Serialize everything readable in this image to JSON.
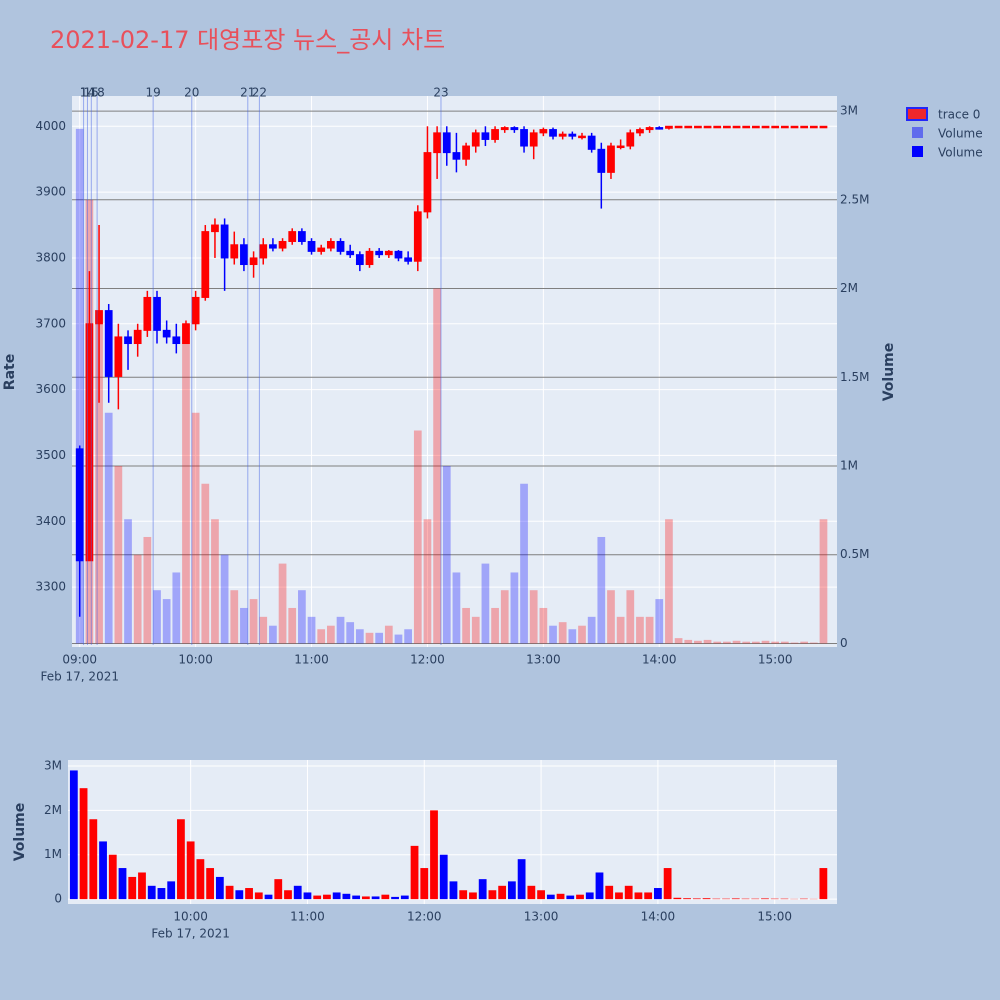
{
  "chart_data": [
    {
      "type": "candlestick",
      "title": "2021-02-17 대영포장 뉴스_공시 차트",
      "name": "trace 0",
      "increasing_color": "#ff0000",
      "decreasing_color": "#0000ff",
      "x": [
        "2021-02-17 09:00",
        "2021-02-17 09:05",
        "2021-02-17 09:10",
        "2021-02-17 09:15",
        "2021-02-17 09:20",
        "2021-02-17 09:25",
        "2021-02-17 09:30",
        "2021-02-17 09:35",
        "2021-02-17 09:40",
        "2021-02-17 09:45",
        "2021-02-17 09:50",
        "2021-02-17 09:55",
        "2021-02-17 10:00",
        "2021-02-17 10:05",
        "2021-02-17 10:10",
        "2021-02-17 10:15",
        "2021-02-17 10:20",
        "2021-02-17 10:25",
        "2021-02-17 10:30",
        "2021-02-17 10:35",
        "2021-02-17 10:40",
        "2021-02-17 10:45",
        "2021-02-17 10:50",
        "2021-02-17 10:55",
        "2021-02-17 11:00",
        "2021-02-17 11:05",
        "2021-02-17 11:10",
        "2021-02-17 11:15",
        "2021-02-17 11:20",
        "2021-02-17 11:25",
        "2021-02-17 11:30",
        "2021-02-17 11:35",
        "2021-02-17 11:40",
        "2021-02-17 11:45",
        "2021-02-17 11:50",
        "2021-02-17 11:55",
        "2021-02-17 12:00",
        "2021-02-17 12:05",
        "2021-02-17 12:10",
        "2021-02-17 12:15",
        "2021-02-17 12:20",
        "2021-02-17 12:25",
        "2021-02-17 12:30",
        "2021-02-17 12:35",
        "2021-02-17 12:40",
        "2021-02-17 12:45",
        "2021-02-17 12:50",
        "2021-02-17 12:55",
        "2021-02-17 13:00",
        "2021-02-17 13:05",
        "2021-02-17 13:10",
        "2021-02-17 13:15",
        "2021-02-17 13:20",
        "2021-02-17 13:25",
        "2021-02-17 13:30",
        "2021-02-17 13:35",
        "2021-02-17 13:40",
        "2021-02-17 13:45",
        "2021-02-17 13:50",
        "2021-02-17 13:55",
        "2021-02-17 14:00",
        "2021-02-17 14:05",
        "2021-02-17 14:10",
        "2021-02-17 14:15",
        "2021-02-17 14:20",
        "2021-02-17 14:25",
        "2021-02-17 14:30",
        "2021-02-17 14:35",
        "2021-02-17 14:40",
        "2021-02-17 14:45",
        "2021-02-17 14:50",
        "2021-02-17 14:55",
        "2021-02-17 15:00",
        "2021-02-17 15:05",
        "2021-02-17 15:10",
        "2021-02-17 15:15",
        "2021-02-17 15:20",
        "2021-02-17 15:25"
      ],
      "open": [
        3510,
        3340,
        3700,
        3720,
        3620,
        3680,
        3670,
        3690,
        3740,
        3690,
        3680,
        3670,
        3700,
        3740,
        3840,
        3850,
        3800,
        3820,
        3790,
        3800,
        3820,
        3815,
        3825,
        3840,
        3825,
        3810,
        3815,
        3825,
        3810,
        3805,
        3790,
        3810,
        3805,
        3810,
        3800,
        3795,
        3870,
        3960,
        3990,
        3960,
        3950,
        3970,
        3990,
        3980,
        3995,
        3998,
        3995,
        3970,
        3990,
        3995,
        3985,
        3988,
        3985,
        3985,
        3965,
        3930,
        3970,
        3970,
        3990,
        3995,
        3998,
        3997,
        4000,
        4000,
        4000,
        4000,
        4000,
        4000,
        4000,
        4000,
        4000,
        4000,
        4000,
        4000,
        4000,
        4000,
        4000,
        4000
      ],
      "high": [
        3515,
        3780,
        3850,
        3730,
        3700,
        3690,
        3700,
        3750,
        3750,
        3705,
        3700,
        3705,
        3750,
        3850,
        3860,
        3860,
        3840,
        3830,
        3810,
        3830,
        3830,
        3830,
        3845,
        3845,
        3830,
        3820,
        3830,
        3830,
        3820,
        3810,
        3815,
        3815,
        3812,
        3812,
        3810,
        3880,
        4000,
        4000,
        4000,
        3990,
        3975,
        3995,
        4000,
        4000,
        4000,
        4000,
        4000,
        3995,
        3998,
        3998,
        3992,
        3992,
        3990,
        3990,
        3975,
        3975,
        3980,
        3995,
        3998,
        4000,
        4000,
        4000,
        4000,
        4000,
        4000,
        4000,
        4000,
        4000,
        4000,
        4000,
        4000,
        4000,
        4000,
        4000,
        4000,
        4000,
        4000,
        4000
      ],
      "low": [
        3255,
        3340,
        3580,
        3580,
        3570,
        3630,
        3650,
        3680,
        3670,
        3670,
        3655,
        3670,
        3690,
        3735,
        3800,
        3750,
        3790,
        3780,
        3770,
        3790,
        3810,
        3810,
        3820,
        3820,
        3805,
        3805,
        3810,
        3805,
        3800,
        3780,
        3785,
        3800,
        3800,
        3795,
        3790,
        3780,
        3860,
        3920,
        3940,
        3930,
        3940,
        3960,
        3970,
        3975,
        3990,
        3990,
        3960,
        3950,
        3985,
        3980,
        3980,
        3980,
        3980,
        3960,
        3875,
        3920,
        3965,
        3965,
        3985,
        3990,
        3995,
        3995,
        4000,
        4000,
        4000,
        4000,
        4000,
        4000,
        4000,
        4000,
        4000,
        4000,
        4000,
        4000,
        4000,
        4000,
        4000,
        4000
      ],
      "close": [
        3340,
        3700,
        3720,
        3620,
        3680,
        3670,
        3690,
        3740,
        3690,
        3680,
        3670,
        3700,
        3740,
        3840,
        3850,
        3800,
        3820,
        3790,
        3800,
        3820,
        3815,
        3825,
        3840,
        3825,
        3810,
        3815,
        3825,
        3810,
        3805,
        3790,
        3810,
        3805,
        3810,
        3800,
        3795,
        3870,
        3960,
        3990,
        3960,
        3950,
        3970,
        3990,
        3980,
        3995,
        3998,
        3995,
        3970,
        3990,
        3995,
        3985,
        3988,
        3985,
        3985,
        3965,
        3930,
        3970,
        3970,
        3990,
        3995,
        3998,
        3997,
        4000,
        4000,
        4000,
        4000,
        4000,
        4000,
        4000,
        4000,
        4000,
        4000,
        4000,
        4000,
        4000,
        4000,
        4000,
        4000,
        4000
      ],
      "volume": {
        "name": "Volume",
        "axis": "y2",
        "values": [
          2900000,
          2500000,
          1800000,
          1300000,
          1000000,
          700000,
          500000,
          600000,
          300000,
          250000,
          400000,
          1800000,
          1300000,
          900000,
          700000,
          500000,
          300000,
          200000,
          250000,
          150000,
          100000,
          450000,
          200000,
          300000,
          150000,
          80000,
          100000,
          150000,
          120000,
          80000,
          60000,
          60000,
          100000,
          50000,
          80000,
          1200000,
          700000,
          2000000,
          1000000,
          400000,
          200000,
          150000,
          450000,
          200000,
          300000,
          400000,
          900000,
          300000,
          200000,
          100000,
          120000,
          80000,
          100000,
          150000,
          600000,
          300000,
          150000,
          300000,
          150000,
          150000,
          250000,
          700000,
          30000,
          20000,
          15000,
          20000,
          10000,
          10000,
          15000,
          10000,
          10000,
          15000,
          10000,
          10000,
          5000,
          10000,
          5000,
          700000
        ]
      },
      "ylabel": "Rate",
      "y2label": "Volume",
      "xlim": [
        "2021-02-17 08:56",
        "2021-02-17 15:32"
      ],
      "xticks": [
        {
          "value": "2021-02-17 09:00",
          "label": "09:00"
        },
        {
          "value": "2021-02-17 10:00",
          "label": "10:00"
        },
        {
          "value": "2021-02-17 11:00",
          "label": "11:00"
        },
        {
          "value": "2021-02-17 12:00",
          "label": "12:00"
        },
        {
          "value": "2021-02-17 13:00",
          "label": "13:00"
        },
        {
          "value": "2021-02-17 14:00",
          "label": "14:00"
        },
        {
          "value": "2021-02-17 15:00",
          "label": "15:00"
        }
      ],
      "x_date_label": "Feb 17, 2021",
      "ylim": [
        3209,
        4046
      ],
      "yticks": [
        3300,
        3400,
        3500,
        3600,
        3700,
        3800,
        3900,
        4000
      ],
      "y2lim": [
        -20000,
        3085000
      ],
      "y2ticks": [
        0,
        {
          "value": 500000,
          "label": "0.5M"
        },
        {
          "value": 1000000,
          "label": "1M"
        },
        {
          "value": 1500000,
          "label": "1.5M"
        },
        {
          "value": 2000000,
          "label": "2M"
        },
        {
          "value": 2500000,
          "label": "2.5M"
        },
        {
          "value": 3000000,
          "label": "3M"
        }
      ],
      "markers": [
        {
          "x": "2021-02-17 09:02",
          "label": "1"
        },
        {
          "x": "2021-02-17 09:04",
          "label": "14"
        },
        {
          "x": "2021-02-17 09:06",
          "label": "15"
        },
        {
          "x": "2021-02-17 09:09",
          "label": "18"
        },
        {
          "x": "2021-02-17 09:38",
          "label": "19"
        },
        {
          "x": "2021-02-17 09:58",
          "label": "20"
        },
        {
          "x": "2021-02-17 10:27",
          "label": "21"
        },
        {
          "x": "2021-02-17 10:33",
          "label": "22"
        },
        {
          "x": "2021-02-17 12:07",
          "label": "23"
        }
      ]
    },
    {
      "type": "bar",
      "name": "Volume",
      "ylabel": "Volume",
      "values": [
        2900000,
        2500000,
        1800000,
        1300000,
        1000000,
        700000,
        500000,
        600000,
        300000,
        250000,
        400000,
        1800000,
        1300000,
        900000,
        700000,
        500000,
        300000,
        200000,
        250000,
        150000,
        100000,
        450000,
        200000,
        300000,
        150000,
        80000,
        100000,
        150000,
        120000,
        80000,
        60000,
        60000,
        100000,
        50000,
        80000,
        1200000,
        700000,
        2000000,
        1000000,
        400000,
        200000,
        150000,
        450000,
        200000,
        300000,
        400000,
        900000,
        300000,
        200000,
        100000,
        120000,
        80000,
        100000,
        150000,
        600000,
        300000,
        150000,
        300000,
        150000,
        150000,
        250000,
        700000,
        30000,
        20000,
        15000,
        20000,
        10000,
        10000,
        15000,
        10000,
        10000,
        15000,
        10000,
        10000,
        5000,
        10000,
        5000,
        700000
      ],
      "xlim": [
        "2021-02-17 08:57",
        "2021-02-17 15:32"
      ],
      "xticks": [
        {
          "value": "2021-02-17 10:00",
          "label": "10:00"
        },
        {
          "value": "2021-02-17 11:00",
          "label": "11:00"
        },
        {
          "value": "2021-02-17 12:00",
          "label": "12:00"
        },
        {
          "value": "2021-02-17 13:00",
          "label": "13:00"
        },
        {
          "value": "2021-02-17 14:00",
          "label": "14:00"
        },
        {
          "value": "2021-02-17 15:00",
          "label": "15:00"
        }
      ],
      "x_date_label": "Feb 17, 2021",
      "ylim": [
        -110000,
        3135000
      ],
      "yticks": [
        0,
        {
          "value": 1000000,
          "label": "1M"
        },
        {
          "value": 2000000,
          "label": "2M"
        },
        {
          "value": 3000000,
          "label": "3M"
        }
      ]
    }
  ]
}
